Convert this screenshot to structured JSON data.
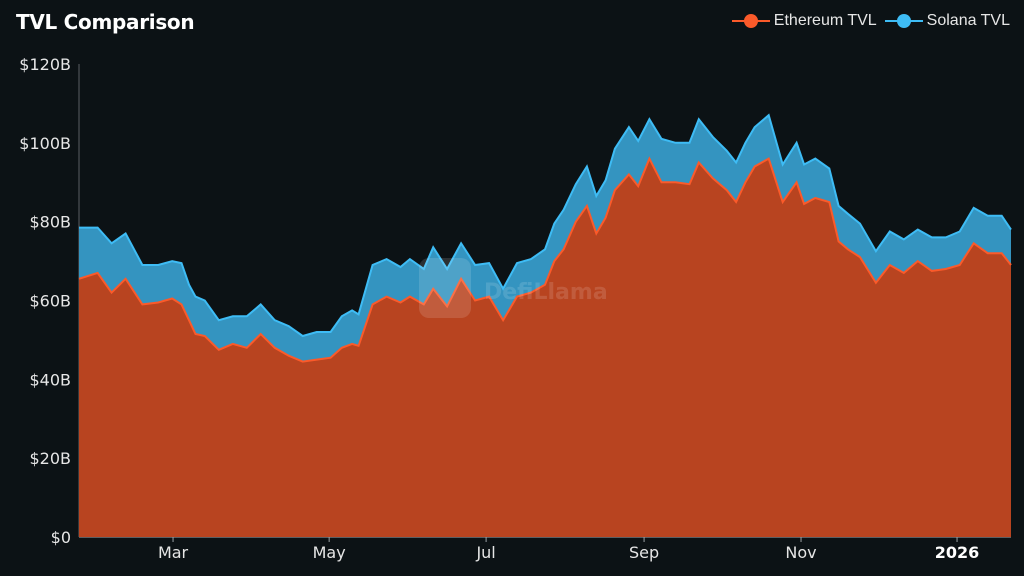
{
  "title": "TVL Comparison",
  "legend": [
    {
      "label": "Ethereum TVL",
      "color": "#fb5a2a",
      "fill": "#b84420"
    },
    {
      "label": "Solana TVL",
      "color": "#3ebcf5",
      "fill": "#3494c0"
    }
  ],
  "watermark": "DefiLlama",
  "colors": {
    "background": "#0c1215",
    "eth_line": "#fb5a2a",
    "eth_fill": "#b84420",
    "sol_line": "#3ebcf5",
    "sol_fill": "#3494c0",
    "axis": "#5a5f63"
  },
  "chart_data": {
    "type": "area",
    "stacked": true,
    "title": "TVL Comparison",
    "xlabel": "",
    "ylabel": "",
    "ylim": [
      0,
      120
    ],
    "y_unit": "$B",
    "y_ticks": [
      0,
      20,
      40,
      60,
      80,
      100,
      120
    ],
    "y_tick_labels": [
      "$0",
      "$20B",
      "$40B",
      "$60B",
      "$80B",
      "$100B",
      "$120B"
    ],
    "x_tick_labels": [
      "Mar",
      "May",
      "Jul",
      "Sep",
      "Nov",
      "2026"
    ],
    "x_tick_positions": [
      0.1009,
      0.2684,
      0.4368,
      0.6063,
      0.7747,
      0.9421
    ],
    "grid": false,
    "legend_position": "top-right",
    "x": [
      0.0,
      0.02,
      0.035,
      0.05,
      0.068,
      0.085,
      0.1,
      0.11,
      0.118,
      0.125,
      0.135,
      0.15,
      0.165,
      0.18,
      0.195,
      0.21,
      0.225,
      0.24,
      0.255,
      0.27,
      0.282,
      0.293,
      0.3,
      0.315,
      0.33,
      0.345,
      0.355,
      0.37,
      0.38,
      0.395,
      0.41,
      0.425,
      0.44,
      0.455,
      0.47,
      0.485,
      0.5,
      0.51,
      0.52,
      0.533,
      0.545,
      0.555,
      0.565,
      0.575,
      0.59,
      0.6,
      0.612,
      0.625,
      0.64,
      0.655,
      0.665,
      0.68,
      0.695,
      0.705,
      0.715,
      0.725,
      0.74,
      0.755,
      0.77,
      0.778,
      0.79,
      0.805,
      0.815,
      0.825,
      0.838,
      0.855,
      0.87,
      0.885,
      0.9,
      0.915,
      0.93,
      0.945,
      0.96,
      0.975,
      0.99,
      1.0
    ],
    "series": [
      {
        "name": "Ethereum TVL",
        "values": [
          65.5,
          67.0,
          62.0,
          65.5,
          59.0,
          59.5,
          60.5,
          59.0,
          55.0,
          51.5,
          51.0,
          47.5,
          49.0,
          48.0,
          51.5,
          48.0,
          46.0,
          44.5,
          45.0,
          45.5,
          48.0,
          49.0,
          48.5,
          59.0,
          61.0,
          59.5,
          61.0,
          59.0,
          63.0,
          58.5,
          65.5,
          60.0,
          61.0,
          55.0,
          61.0,
          62.0,
          64.0,
          70.0,
          73.0,
          80.0,
          84.0,
          77.0,
          81.0,
          88.0,
          92.0,
          89.0,
          96.0,
          90.0,
          90.0,
          89.5,
          95.0,
          91.0,
          88.0,
          85.0,
          90.0,
          94.0,
          96.0,
          85.0,
          90.0,
          84.5,
          86.0,
          85.0,
          75.0,
          73.0,
          71.0,
          64.5,
          69.0,
          67.0,
          70.0,
          67.5,
          68.0,
          69.0,
          74.5,
          72.0,
          72.0,
          69.0
        ],
        "color": "#fb5a2a"
      },
      {
        "name": "Solana TVL",
        "values": [
          13.0,
          11.5,
          12.5,
          11.5,
          10.0,
          9.5,
          9.5,
          10.5,
          9.0,
          9.5,
          9.0,
          7.5,
          7.0,
          8.0,
          7.5,
          7.0,
          7.5,
          6.5,
          7.0,
          6.5,
          8.0,
          8.5,
          8.0,
          10.0,
          9.5,
          9.0,
          9.5,
          9.0,
          10.5,
          9.5,
          9.0,
          9.0,
          8.5,
          8.0,
          8.5,
          8.5,
          9.0,
          9.5,
          10.0,
          9.5,
          10.0,
          9.5,
          9.5,
          10.5,
          12.0,
          11.5,
          10.0,
          11.0,
          10.0,
          10.5,
          11.0,
          10.5,
          10.0,
          10.0,
          10.0,
          10.0,
          11.0,
          9.5,
          10.0,
          10.0,
          10.0,
          8.5,
          9.0,
          9.0,
          8.5,
          8.0,
          8.5,
          8.5,
          8.0,
          8.5,
          8.0,
          8.5,
          9.0,
          9.5,
          9.5,
          9.0
        ],
        "color": "#3ebcf5"
      }
    ]
  }
}
